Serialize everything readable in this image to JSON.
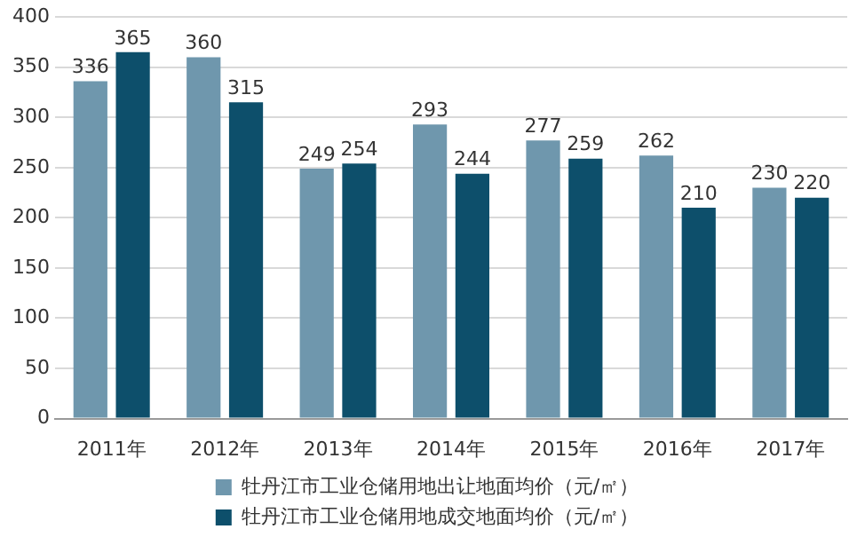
{
  "chart_data": {
    "type": "bar",
    "categories": [
      "2011年",
      "2012年",
      "2013年",
      "2014年",
      "2015年",
      "2016年",
      "2017年"
    ],
    "series": [
      {
        "name": "牡丹江市工业仓储用地出让地面均价（元/㎡）",
        "color": "#6f97ad",
        "values": [
          336,
          360,
          249,
          293,
          277,
          262,
          230
        ]
      },
      {
        "name": "牡丹江市工业仓储用地成交地面均价（元/㎡）",
        "color": "#0d4f6b",
        "values": [
          365,
          315,
          254,
          244,
          259,
          210,
          220
        ]
      }
    ],
    "ylim": [
      0,
      400
    ],
    "yticks": [
      0,
      50,
      100,
      150,
      200,
      250,
      300,
      350,
      400
    ],
    "grid": "y",
    "legend": "bottom",
    "data_labels": true
  }
}
